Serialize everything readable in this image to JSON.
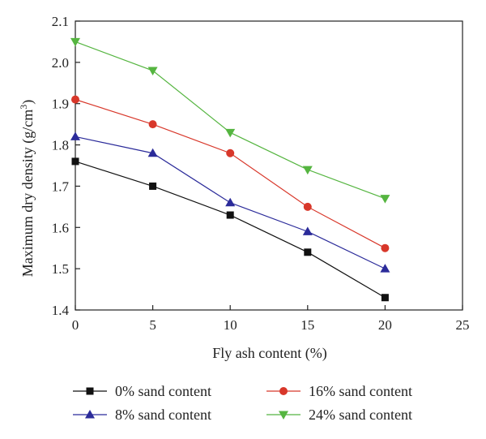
{
  "chart_data": {
    "type": "line",
    "xlabel": "Fly ash content (%)",
    "ylabel": "Maximum dry density (g/cm",
    "ylabel_sup": "3",
    "ylabel_end": ")",
    "xlim": [
      0,
      25
    ],
    "ylim": [
      1.4,
      2.1
    ],
    "xticks": [
      "0",
      "5",
      "10",
      "15",
      "20",
      "25"
    ],
    "yticks": [
      "1.4",
      "1.5",
      "1.6",
      "1.7",
      "1.8",
      "1.9",
      "2.0",
      "2.1"
    ],
    "grid": false,
    "legend_position": "bottom",
    "x": [
      0,
      5,
      10,
      15,
      20
    ],
    "series": [
      {
        "name": "0% sand content",
        "values": [
          1.76,
          1.7,
          1.63,
          1.54,
          1.43
        ],
        "color": "#111111",
        "marker": "square"
      },
      {
        "name": "8% sand content",
        "values": [
          1.82,
          1.78,
          1.66,
          1.59,
          1.5
        ],
        "color": "#2b2b9a",
        "marker": "triangle-up"
      },
      {
        "name": "16% sand content",
        "values": [
          1.91,
          1.85,
          1.78,
          1.65,
          1.55
        ],
        "color": "#d8372a",
        "marker": "circle"
      },
      {
        "name": "24% sand content",
        "values": [
          2.05,
          1.98,
          1.83,
          1.74,
          1.67
        ],
        "color": "#55b540",
        "marker": "triangle-down"
      }
    ]
  }
}
